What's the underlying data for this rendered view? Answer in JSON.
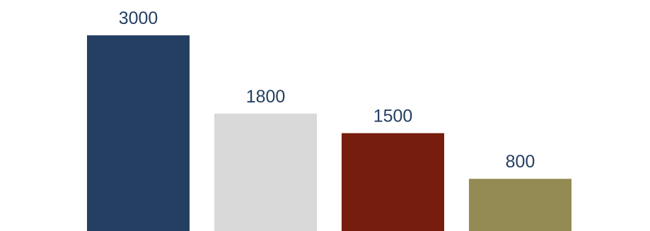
{
  "chart_data": {
    "type": "bar",
    "values": [
      3000,
      1800,
      1500,
      800
    ],
    "data_labels": [
      "3000",
      "1800",
      "1500",
      "800"
    ],
    "colors": [
      "#243F61",
      "#D9D9D9",
      "#761D0D",
      "#948A53"
    ],
    "label_color": "#243F61",
    "ylim": [
      0,
      3000
    ],
    "grid": false,
    "legend": "none"
  }
}
